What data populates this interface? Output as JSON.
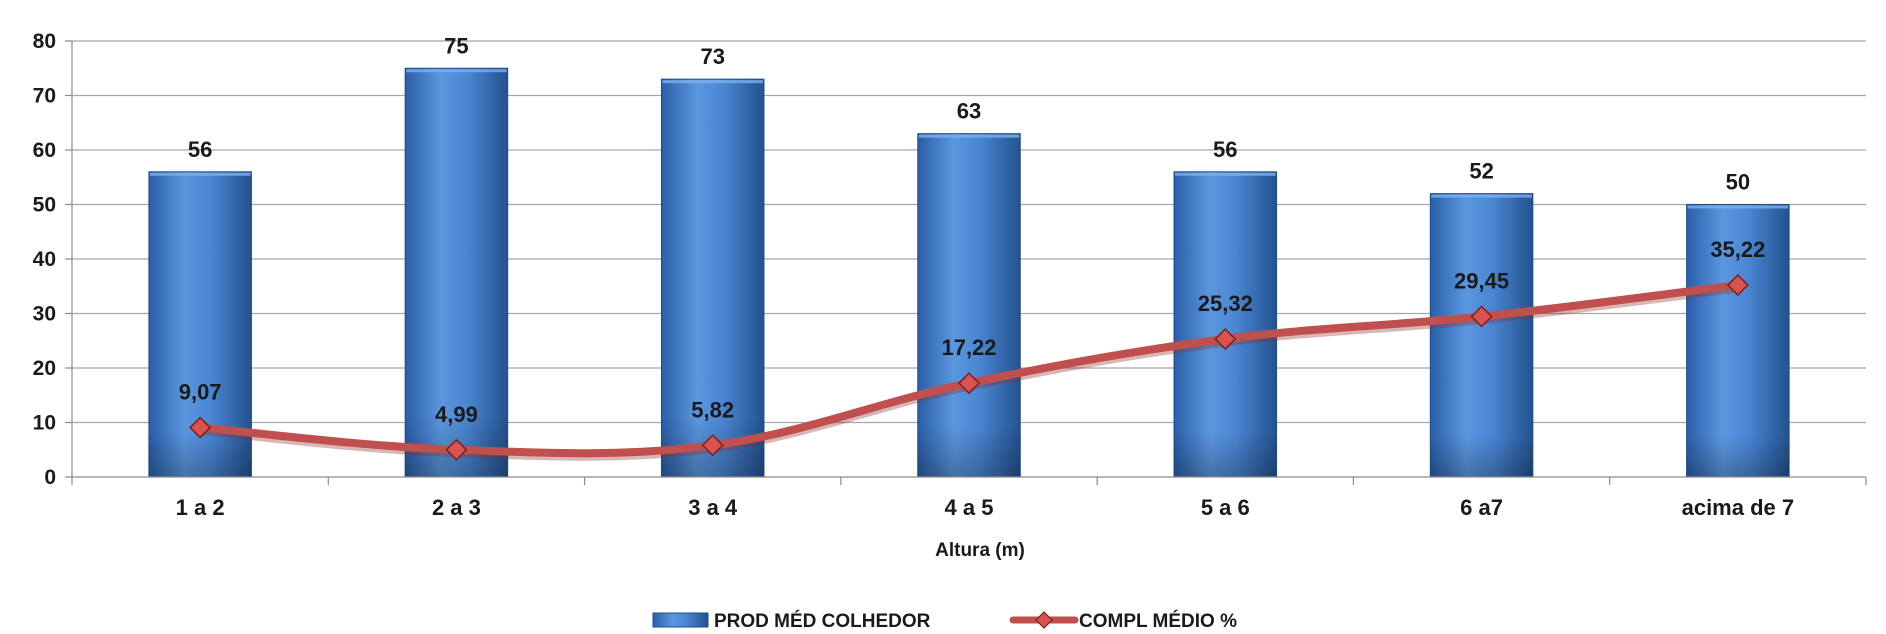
{
  "chart_data": {
    "type": "bar",
    "title": "",
    "xlabel": "Altura (m)",
    "ylabel": "",
    "ylim": [
      0,
      80
    ],
    "yticks": [
      0,
      10,
      20,
      30,
      40,
      50,
      60,
      70,
      80
    ],
    "grid": true,
    "legend_position": "bottom",
    "categories": [
      "1 a 2",
      "2 a 3",
      "3 a 4",
      "4 a 5",
      "5 a 6",
      "6 a7",
      "acima de 7"
    ],
    "series": [
      {
        "name": "PROD MÉD COLHEDOR",
        "type": "bar",
        "color": "#3f7fd0",
        "values": [
          56,
          75,
          73,
          63,
          56,
          52,
          50
        ],
        "value_labels": [
          "56",
          "75",
          "73",
          "63",
          "56",
          "52",
          "50"
        ]
      },
      {
        "name": "COMPL MÉDIO %",
        "type": "line",
        "color": "#c0504d",
        "values": [
          9.07,
          4.99,
          5.82,
          17.22,
          25.32,
          29.45,
          35.22
        ],
        "value_labels": [
          "9,07",
          "4,99",
          "5,82",
          "17,22",
          "25,32",
          "29,45",
          "35,22"
        ]
      }
    ]
  }
}
